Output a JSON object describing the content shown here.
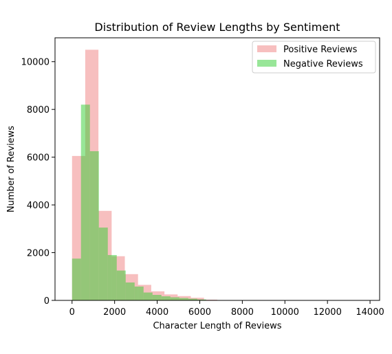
{
  "chart_data": {
    "type": "histogram",
    "title": "Distribution of Review Lengths by Sentiment",
    "xlabel": "Character Length of Reviews",
    "ylabel": "Number of Reviews",
    "xlim": [
      -800,
      14450
    ],
    "ylim": [
      0,
      11000
    ],
    "xticks": [
      0,
      2000,
      4000,
      6000,
      8000,
      10000,
      12000,
      14000
    ],
    "yticks": [
      0,
      2000,
      4000,
      6000,
      8000,
      10000
    ],
    "grid": false,
    "legend_position": "top-right",
    "series": [
      {
        "name": "Positive Reviews",
        "color": "#f08080",
        "opacity": 0.5,
        "bins": [
          {
            "x0": 0,
            "x1": 620,
            "value": 6050
          },
          {
            "x0": 620,
            "x1": 1240,
            "value": 10500
          },
          {
            "x0": 1240,
            "x1": 1860,
            "value": 3750
          },
          {
            "x0": 1860,
            "x1": 2480,
            "value": 1850
          },
          {
            "x0": 2480,
            "x1": 3100,
            "value": 1100
          },
          {
            "x0": 3100,
            "x1": 3720,
            "value": 650
          },
          {
            "x0": 3720,
            "x1": 4340,
            "value": 380
          },
          {
            "x0": 4340,
            "x1": 4960,
            "value": 250
          },
          {
            "x0": 4960,
            "x1": 5580,
            "value": 180
          },
          {
            "x0": 5580,
            "x1": 6200,
            "value": 110
          },
          {
            "x0": 6200,
            "x1": 6820,
            "value": 30
          },
          {
            "x0": 6820,
            "x1": 7440,
            "value": 10
          },
          {
            "x0": 7440,
            "x1": 8060,
            "value": 5
          },
          {
            "x0": 8060,
            "x1": 8680,
            "value": 3
          },
          {
            "x0": 8680,
            "x1": 9300,
            "value": 2
          },
          {
            "x0": 9300,
            "x1": 9920,
            "value": 1
          },
          {
            "x0": 9920,
            "x1": 10540,
            "value": 1
          },
          {
            "x0": 10540,
            "x1": 11160,
            "value": 1
          },
          {
            "x0": 11160,
            "x1": 11780,
            "value": 0
          },
          {
            "x0": 11780,
            "x1": 12400,
            "value": 1
          },
          {
            "x0": 12400,
            "x1": 13020,
            "value": 0
          },
          {
            "x0": 13020,
            "x1": 13640,
            "value": 1
          }
        ]
      },
      {
        "name": "Negative Reviews",
        "color": "#32cd32",
        "opacity": 0.5,
        "bins": [
          {
            "x0": 0,
            "x1": 420,
            "value": 1750
          },
          {
            "x0": 420,
            "x1": 840,
            "value": 8200
          },
          {
            "x0": 840,
            "x1": 1260,
            "value": 6250
          },
          {
            "x0": 1260,
            "x1": 1680,
            "value": 3050
          },
          {
            "x0": 1680,
            "x1": 2100,
            "value": 1900
          },
          {
            "x0": 2100,
            "x1": 2520,
            "value": 1250
          },
          {
            "x0": 2520,
            "x1": 2940,
            "value": 750
          },
          {
            "x0": 2940,
            "x1": 3360,
            "value": 580
          },
          {
            "x0": 3360,
            "x1": 3780,
            "value": 330
          },
          {
            "x0": 3780,
            "x1": 4200,
            "value": 230
          },
          {
            "x0": 4200,
            "x1": 4620,
            "value": 170
          },
          {
            "x0": 4620,
            "x1": 5040,
            "value": 130
          },
          {
            "x0": 5040,
            "x1": 5460,
            "value": 100
          },
          {
            "x0": 5460,
            "x1": 5880,
            "value": 70
          },
          {
            "x0": 5880,
            "x1": 6300,
            "value": 40
          },
          {
            "x0": 6300,
            "x1": 6720,
            "value": 15
          },
          {
            "x0": 6720,
            "x1": 7140,
            "value": 8
          },
          {
            "x0": 7140,
            "x1": 7560,
            "value": 4
          },
          {
            "x0": 7560,
            "x1": 7980,
            "value": 2
          }
        ]
      }
    ]
  }
}
